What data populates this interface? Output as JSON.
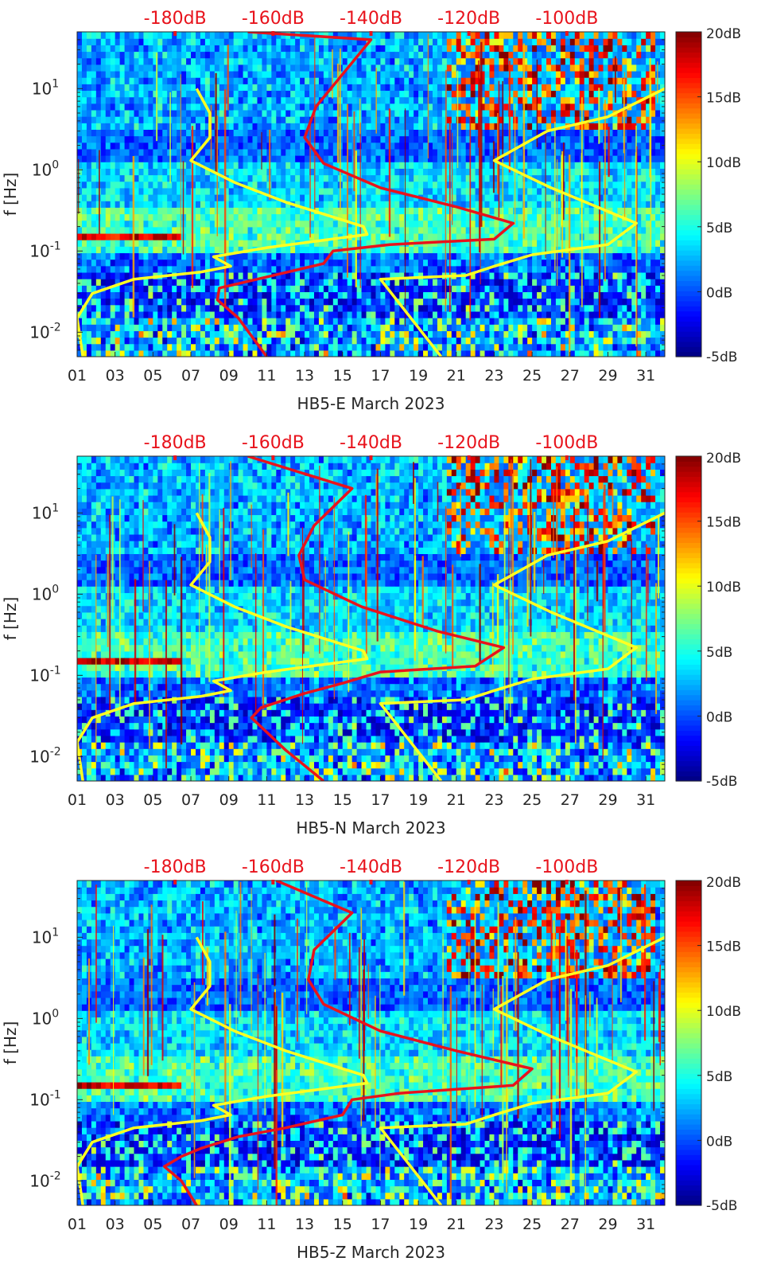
{
  "chart_data": [
    {
      "type": "heatmap",
      "station": "HB5-E",
      "xlabel": "HB5-E March 2023",
      "ylabel": "f [Hz]",
      "x_ticks": [
        "01",
        "03",
        "05",
        "07",
        "09",
        "11",
        "13",
        "15",
        "17",
        "19",
        "21",
        "23",
        "25",
        "27",
        "29",
        "31"
      ],
      "x_range": [
        1,
        32
      ],
      "y_ticks": [
        "10^-2",
        "10^-1",
        "10^0",
        "10^1"
      ],
      "y_range_hz": [
        0.005,
        50
      ],
      "top_ticks": [
        "-180dB",
        "-160dB",
        "-140dB",
        "-120dB",
        "-100dB"
      ],
      "colorbar_ticks": [
        "20dB",
        "15dB",
        "10dB",
        "5dB",
        "0dB",
        "-5dB"
      ],
      "colorbar_range_db": [
        -5,
        20
      ],
      "noise_model_yellow_left": [
        [
          1.3,
          0.005
        ],
        [
          1.0,
          0.015
        ],
        [
          1.8,
          0.03
        ],
        [
          4.0,
          0.045
        ],
        [
          7.5,
          0.055
        ],
        [
          9.1,
          0.065
        ],
        [
          8.2,
          0.085
        ],
        [
          11.0,
          0.11
        ],
        [
          16.3,
          0.16
        ],
        [
          16.1,
          0.2
        ],
        [
          12.0,
          0.4
        ],
        [
          9.3,
          0.7
        ],
        [
          7.0,
          1.3
        ],
        [
          8.0,
          2.5
        ],
        [
          8.0,
          5.0
        ],
        [
          7.3,
          10.0
        ]
      ],
      "noise_model_yellow_right": [
        [
          20.2,
          0.005
        ],
        [
          17.0,
          0.045
        ],
        [
          21.5,
          0.05
        ],
        [
          23.0,
          0.065
        ],
        [
          25.0,
          0.09
        ],
        [
          29.0,
          0.12
        ],
        [
          30.5,
          0.22
        ],
        [
          26.0,
          0.6
        ],
        [
          23.0,
          1.3
        ],
        [
          25.8,
          3.0
        ],
        [
          29.0,
          4.5
        ],
        [
          32.0,
          10.0
        ]
      ],
      "median_red": [
        [
          11.0,
          0.005
        ],
        [
          9.5,
          0.015
        ],
        [
          8.4,
          0.025
        ],
        [
          8.5,
          0.035
        ],
        [
          10.5,
          0.045
        ],
        [
          14.0,
          0.07
        ],
        [
          14.5,
          0.1
        ],
        [
          17.5,
          0.12
        ],
        [
          23.0,
          0.14
        ],
        [
          24.0,
          0.22
        ],
        [
          21.0,
          0.35
        ],
        [
          17.0,
          0.6
        ],
        [
          14.0,
          1.2
        ],
        [
          13.0,
          2.5
        ],
        [
          13.6,
          6.0
        ],
        [
          15.0,
          15.0
        ],
        [
          16.5,
          40.0
        ],
        [
          10.0,
          50.0
        ]
      ],
      "red_top_db": [
        -180,
        -100
      ]
    },
    {
      "type": "heatmap",
      "station": "HB5-N",
      "xlabel": "HB5-N March 2023",
      "ylabel": "f [Hz]",
      "x_ticks": [
        "01",
        "03",
        "05",
        "07",
        "09",
        "11",
        "13",
        "15",
        "17",
        "19",
        "21",
        "23",
        "25",
        "27",
        "29",
        "31"
      ],
      "x_range": [
        1,
        32
      ],
      "y_ticks": [
        "10^-2",
        "10^-1",
        "10^0",
        "10^1"
      ],
      "y_range_hz": [
        0.005,
        50
      ],
      "top_ticks": [
        "-180dB",
        "-160dB",
        "-140dB",
        "-120dB",
        "-100dB"
      ],
      "colorbar_ticks": [
        "20dB",
        "15dB",
        "10dB",
        "5dB",
        "0dB",
        "-5dB"
      ],
      "colorbar_range_db": [
        -5,
        20
      ],
      "noise_model_yellow_left": [
        [
          1.3,
          0.005
        ],
        [
          1.0,
          0.015
        ],
        [
          1.8,
          0.03
        ],
        [
          4.0,
          0.045
        ],
        [
          7.5,
          0.055
        ],
        [
          9.1,
          0.065
        ],
        [
          8.2,
          0.085
        ],
        [
          11.0,
          0.11
        ],
        [
          16.3,
          0.16
        ],
        [
          16.1,
          0.2
        ],
        [
          12.0,
          0.4
        ],
        [
          9.3,
          0.7
        ],
        [
          7.0,
          1.3
        ],
        [
          8.0,
          2.5
        ],
        [
          8.0,
          5.0
        ],
        [
          7.3,
          10.0
        ]
      ],
      "noise_model_yellow_right": [
        [
          20.2,
          0.005
        ],
        [
          17.0,
          0.045
        ],
        [
          21.5,
          0.05
        ],
        [
          23.0,
          0.065
        ],
        [
          25.0,
          0.09
        ],
        [
          29.0,
          0.12
        ],
        [
          30.5,
          0.22
        ],
        [
          26.0,
          0.6
        ],
        [
          23.0,
          1.3
        ],
        [
          25.8,
          3.0
        ],
        [
          29.0,
          4.5
        ],
        [
          32.0,
          10.0
        ]
      ],
      "median_red": [
        [
          14.0,
          0.005
        ],
        [
          12.0,
          0.012
        ],
        [
          11.0,
          0.02
        ],
        [
          10.2,
          0.03
        ],
        [
          10.7,
          0.04
        ],
        [
          13.0,
          0.06
        ],
        [
          15.0,
          0.08
        ],
        [
          17.0,
          0.11
        ],
        [
          22.0,
          0.13
        ],
        [
          23.5,
          0.22
        ],
        [
          20.0,
          0.35
        ],
        [
          16.0,
          0.7
        ],
        [
          13.0,
          1.5
        ],
        [
          12.7,
          3.0
        ],
        [
          13.5,
          7.0
        ],
        [
          15.5,
          20.0
        ],
        [
          10.0,
          50.0
        ]
      ],
      "red_top_db": [
        -180,
        -100
      ]
    },
    {
      "type": "heatmap",
      "station": "HB5-Z",
      "xlabel": "HB5-Z March 2023",
      "ylabel": "f [Hz]",
      "x_ticks": [
        "01",
        "03",
        "05",
        "07",
        "09",
        "11",
        "13",
        "15",
        "17",
        "19",
        "21",
        "23",
        "25",
        "27",
        "29",
        "31"
      ],
      "x_range": [
        1,
        32
      ],
      "y_ticks": [
        "10^-2",
        "10^-1",
        "10^0",
        "10^1"
      ],
      "y_range_hz": [
        0.005,
        50
      ],
      "top_ticks": [
        "-180dB",
        "-160dB",
        "-140dB",
        "-120dB",
        "-100dB"
      ],
      "colorbar_ticks": [
        "20dB",
        "15dB",
        "10dB",
        "5dB",
        "0dB",
        "-5dB"
      ],
      "colorbar_range_db": [
        -5,
        20
      ],
      "noise_model_yellow_left": [
        [
          1.3,
          0.005
        ],
        [
          1.0,
          0.015
        ],
        [
          1.8,
          0.03
        ],
        [
          4.0,
          0.045
        ],
        [
          7.5,
          0.055
        ],
        [
          9.1,
          0.065
        ],
        [
          8.2,
          0.085
        ],
        [
          11.0,
          0.11
        ],
        [
          16.3,
          0.16
        ],
        [
          16.1,
          0.2
        ],
        [
          12.0,
          0.4
        ],
        [
          9.3,
          0.7
        ],
        [
          7.0,
          1.3
        ],
        [
          8.0,
          2.5
        ],
        [
          8.0,
          5.0
        ],
        [
          7.3,
          10.0
        ]
      ],
      "noise_model_yellow_right": [
        [
          20.2,
          0.005
        ],
        [
          17.0,
          0.045
        ],
        [
          21.5,
          0.05
        ],
        [
          23.0,
          0.065
        ],
        [
          25.0,
          0.09
        ],
        [
          29.0,
          0.12
        ],
        [
          30.5,
          0.22
        ],
        [
          26.0,
          0.6
        ],
        [
          23.0,
          1.3
        ],
        [
          25.8,
          3.0
        ],
        [
          29.0,
          4.5
        ],
        [
          32.0,
          10.0
        ]
      ],
      "median_red": [
        [
          7.3,
          0.005
        ],
        [
          6.5,
          0.01
        ],
        [
          5.6,
          0.015
        ],
        [
          6.5,
          0.02
        ],
        [
          7.5,
          0.025
        ],
        [
          9.5,
          0.035
        ],
        [
          12.0,
          0.045
        ],
        [
          15.0,
          0.065
        ],
        [
          15.5,
          0.1
        ],
        [
          18.0,
          0.12
        ],
        [
          24.0,
          0.15
        ],
        [
          25.0,
          0.24
        ],
        [
          21.0,
          0.4
        ],
        [
          17.0,
          0.7
        ],
        [
          14.0,
          1.5
        ],
        [
          13.2,
          3.0
        ],
        [
          13.5,
          7.0
        ],
        [
          15.5,
          20.0
        ],
        [
          11.5,
          50.0
        ]
      ],
      "red_top_db": [
        -180,
        -100
      ]
    }
  ]
}
